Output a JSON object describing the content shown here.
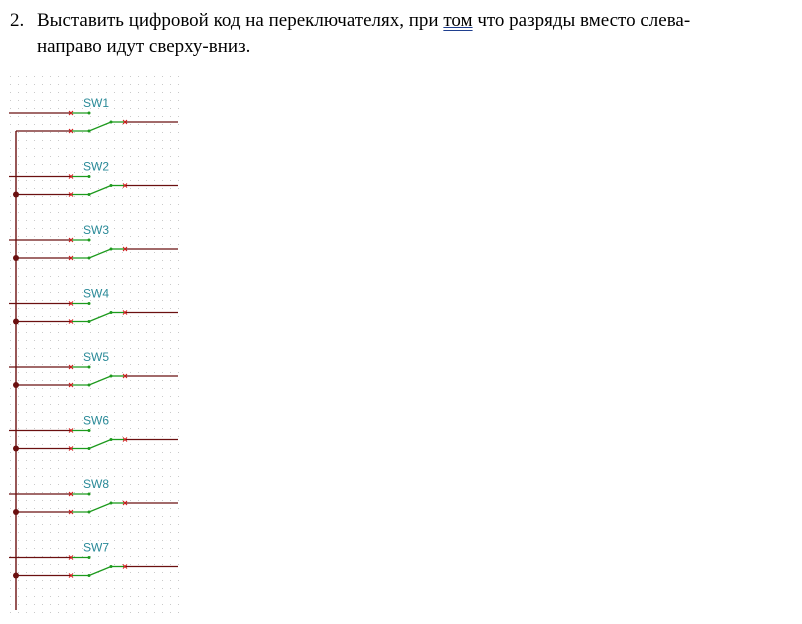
{
  "task": {
    "number": "2.",
    "line1_before": "Выставить цифровой код на переключателях, при ",
    "line1_marked": "том",
    "line1_after": " что разряды вместо слева-",
    "line2": "направо идут сверху-вниз."
  },
  "switches": [
    "SW1",
    "SW2",
    "SW3",
    "SW4",
    "SW5",
    "SW6",
    "SW8",
    "SW7"
  ],
  "colors": {
    "wire": "#6b1010",
    "switch": "#1d9a1d",
    "pin": "#d01515",
    "label": "#2a8a98",
    "grid": "#c9c9c9"
  }
}
